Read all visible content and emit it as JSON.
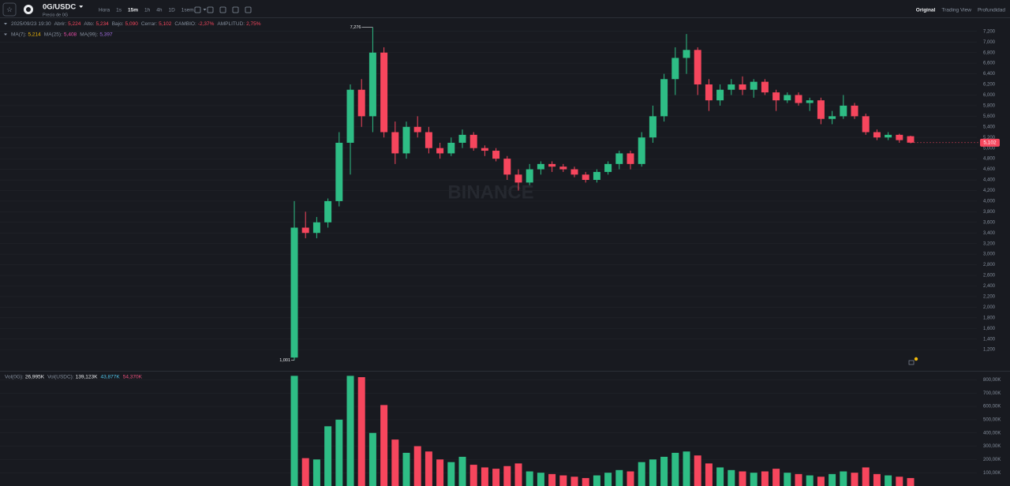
{
  "header": {
    "pair": "0G/USDC",
    "subtitle": "Precio de 0G",
    "intervals": [
      "Hora",
      "1s",
      "15m",
      "1h",
      "4h",
      "1D",
      "1sem."
    ],
    "active_interval": "15m",
    "views": [
      "Original",
      "Trading View",
      "Profundidad"
    ],
    "active_view": "Original"
  },
  "info": {
    "date": "2025/09/23 19:30",
    "fields": [
      {
        "label": "Abrir:",
        "value": "5,224"
      },
      {
        "label": "Alto:",
        "value": "5,234"
      },
      {
        "label": "Bajo:",
        "value": "5,090"
      },
      {
        "label": "Cerrar:",
        "value": "5,102"
      },
      {
        "label": "CAMBIO:",
        "value": "-2,37%"
      },
      {
        "label": "AMPLITUD:",
        "value": "2,75%"
      }
    ]
  },
  "ma_legend": [
    {
      "label": "MA(7):",
      "value": "5,214",
      "color": "#f0b90b"
    },
    {
      "label": "MA(25):",
      "value": "5,408",
      "color": "#e84fa8"
    },
    {
      "label": "MA(99):",
      "value": "5,397",
      "color": "#9b6ad8"
    }
  ],
  "vol_legend": [
    {
      "label": "Vol(0G):",
      "value": "26,995K",
      "color": "#eaecef"
    },
    {
      "label": "Vol(USDC):",
      "value": "139,123K",
      "color": "#eaecef"
    },
    {
      "value": "43,877K",
      "color": "#4fc3e8"
    },
    {
      "value": "54,370K",
      "color": "#e84f7a"
    }
  ],
  "watermark": "BINANCE",
  "chart_data": [
    {
      "type": "candlestick",
      "up_color": "#2ebd85",
      "down_color": "#f6465d",
      "ylim": [
        0.83,
        7.42
      ],
      "open": [
        1.05,
        3.5,
        3.4,
        3.6,
        4.0,
        5.1,
        6.1,
        5.6,
        6.8,
        5.3,
        4.9,
        5.4,
        5.3,
        5.0,
        4.9,
        5.1,
        5.25,
        5.0,
        4.95,
        4.8,
        4.5,
        4.35,
        4.6,
        4.7,
        4.65,
        4.6,
        4.5,
        4.4,
        4.55,
        4.7,
        4.9,
        4.7,
        5.2,
        5.6,
        6.3,
        6.7,
        6.85,
        6.2,
        5.9,
        6.1,
        6.2,
        6.1,
        6.25,
        6.05,
        5.9,
        6.0,
        5.85,
        5.9,
        5.55,
        5.6,
        5.8,
        5.6,
        5.3,
        5.2,
        5.25,
        5.224
      ],
      "high": [
        4.0,
        3.8,
        3.7,
        4.05,
        5.3,
        6.2,
        6.3,
        7.276,
        6.9,
        5.5,
        5.5,
        5.6,
        5.4,
        5.1,
        5.2,
        5.35,
        5.3,
        5.05,
        5.0,
        4.85,
        4.6,
        4.7,
        4.75,
        4.75,
        4.7,
        4.65,
        4.55,
        4.6,
        4.75,
        4.95,
        4.95,
        5.3,
        5.8,
        6.4,
        6.9,
        7.15,
        6.9,
        6.3,
        6.2,
        6.3,
        6.35,
        6.3,
        6.3,
        6.1,
        6.05,
        6.05,
        5.95,
        5.95,
        5.7,
        6.0,
        5.85,
        5.65,
        5.35,
        5.3,
        5.27,
        5.234
      ],
      "low": [
        1.001,
        3.3,
        3.3,
        3.5,
        3.9,
        4.5,
        5.4,
        5.3,
        5.2,
        4.7,
        4.8,
        5.2,
        4.9,
        4.8,
        4.85,
        5.0,
        4.95,
        4.85,
        4.75,
        4.4,
        4.2,
        4.3,
        4.5,
        4.55,
        4.55,
        4.45,
        4.35,
        4.35,
        4.5,
        4.6,
        4.6,
        4.65,
        5.1,
        5.5,
        6.0,
        6.4,
        6.0,
        5.7,
        5.8,
        6.0,
        6.0,
        5.95,
        6.0,
        5.7,
        5.85,
        5.8,
        5.7,
        5.45,
        5.45,
        5.55,
        5.55,
        5.25,
        5.15,
        5.15,
        5.1,
        5.09
      ],
      "close": [
        3.5,
        3.4,
        3.6,
        4.0,
        5.1,
        6.1,
        5.6,
        6.8,
        5.3,
        4.9,
        5.4,
        5.3,
        5.0,
        4.9,
        5.1,
        5.25,
        5.0,
        4.95,
        4.8,
        4.5,
        4.35,
        4.6,
        4.7,
        4.65,
        4.6,
        4.5,
        4.4,
        4.55,
        4.7,
        4.9,
        4.7,
        5.2,
        5.6,
        6.3,
        6.7,
        6.85,
        6.2,
        5.9,
        6.1,
        6.2,
        6.1,
        6.25,
        6.05,
        5.9,
        6.0,
        5.85,
        5.9,
        5.55,
        5.6,
        5.8,
        5.6,
        5.3,
        5.2,
        5.25,
        5.15,
        5.102
      ],
      "yticks": [
        {
          "value": 1.2,
          "label": "1,200"
        },
        {
          "value": 1.4,
          "label": "1,400"
        },
        {
          "value": 1.6,
          "label": "1,600"
        },
        {
          "value": 1.8,
          "label": "1,800"
        },
        {
          "value": 2.0,
          "label": "2,000"
        },
        {
          "value": 2.2,
          "label": "2,200"
        },
        {
          "value": 2.4,
          "label": "2,400"
        },
        {
          "value": 2.6,
          "label": "2,600"
        },
        {
          "value": 2.8,
          "label": "2,800"
        },
        {
          "value": 3.0,
          "label": "3,000"
        },
        {
          "value": 3.2,
          "label": "3,200"
        },
        {
          "value": 3.4,
          "label": "3,400"
        },
        {
          "value": 3.6,
          "label": "3,600"
        },
        {
          "value": 3.8,
          "label": "3,800"
        },
        {
          "value": 4.0,
          "label": "4,000"
        },
        {
          "value": 4.2,
          "label": "4,200"
        },
        {
          "value": 4.4,
          "label": "4,400"
        },
        {
          "value": 4.6,
          "label": "4,600"
        },
        {
          "value": 4.8,
          "label": "4,800"
        },
        {
          "value": 5.0,
          "label": "5,000"
        },
        {
          "value": 5.2,
          "label": "5,200"
        },
        {
          "value": 5.4,
          "label": "5,400"
        },
        {
          "value": 5.6,
          "label": "5,600"
        },
        {
          "value": 5.8,
          "label": "5,800"
        },
        {
          "value": 6.0,
          "label": "6,000"
        },
        {
          "value": 6.2,
          "label": "6,200"
        },
        {
          "value": 6.4,
          "label": "6,400"
        },
        {
          "value": 6.6,
          "label": "6,600"
        },
        {
          "value": 6.8,
          "label": "6,800"
        },
        {
          "value": 7.0,
          "label": "7,000"
        },
        {
          "value": 7.2,
          "label": "7,200"
        }
      ],
      "high_label": "7,276",
      "low_label": "1,001",
      "last_price_label": "5,102",
      "grid": true
    },
    {
      "type": "bar",
      "ylim": [
        0,
        856000
      ],
      "values": [
        830000,
        210000,
        200000,
        450000,
        500000,
        830000,
        820000,
        400000,
        610000,
        350000,
        250000,
        300000,
        260000,
        200000,
        180000,
        220000,
        160000,
        140000,
        130000,
        150000,
        170000,
        110000,
        100000,
        90000,
        80000,
        70000,
        60000,
        80000,
        100000,
        120000,
        110000,
        180000,
        200000,
        220000,
        250000,
        260000,
        230000,
        170000,
        140000,
        120000,
        110000,
        100000,
        110000,
        130000,
        100000,
        90000,
        80000,
        70000,
        90000,
        110000,
        100000,
        140000,
        90000,
        80000,
        70000,
        60000
      ],
      "yticks": [
        {
          "value": 100000,
          "label": "100,00K"
        },
        {
          "value": 200000,
          "label": "200,00K"
        },
        {
          "value": 300000,
          "label": "300,00K"
        },
        {
          "value": 400000,
          "label": "400,00K"
        },
        {
          "value": 500000,
          "label": "500,00K"
        },
        {
          "value": 600000,
          "label": "600,00K"
        },
        {
          "value": 700000,
          "label": "700,00K"
        },
        {
          "value": 800000,
          "label": "800,00K"
        }
      ],
      "grid": true
    }
  ]
}
